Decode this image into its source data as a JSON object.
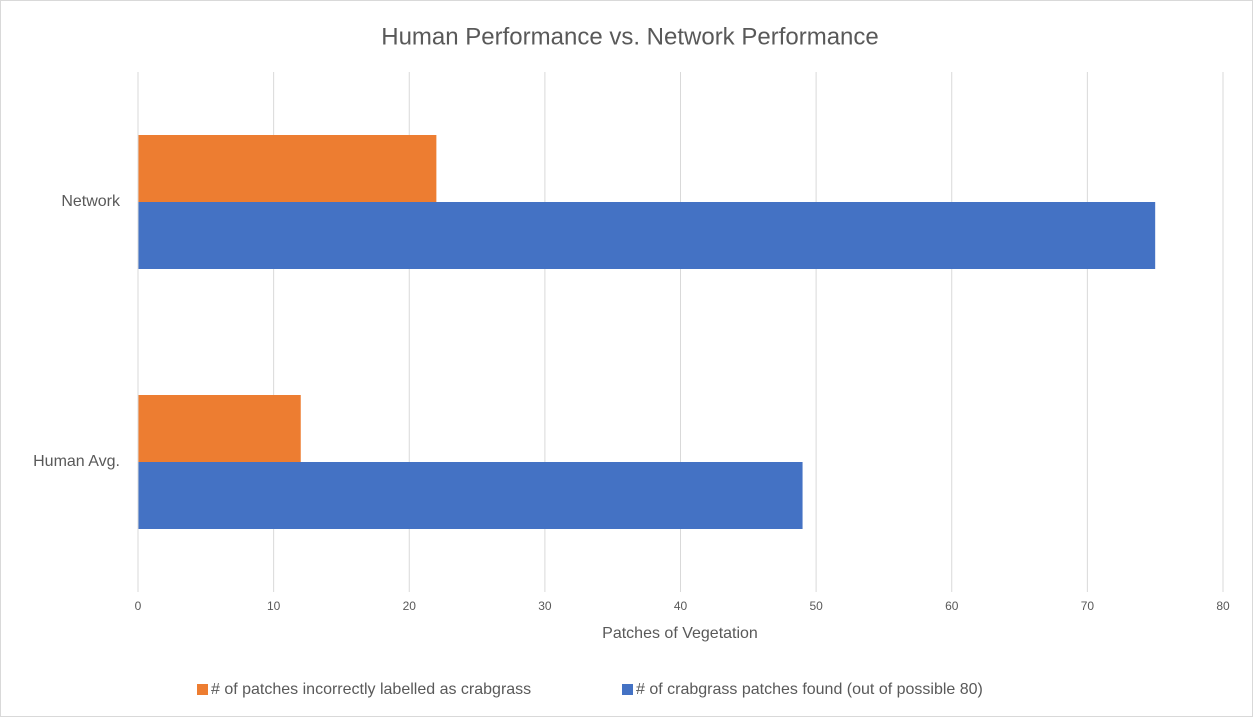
{
  "chart_data": {
    "type": "barh",
    "title": "Human Performance vs. Network Performance",
    "xlabel": "Patches of Vegetation",
    "categories": [
      "Network",
      "Human Avg."
    ],
    "series": [
      {
        "name": "# of patches incorrectly labelled as crabgrass",
        "color": "#ed7d31",
        "values": [
          22,
          12
        ]
      },
      {
        "name": "# of crabgrass patches found (out of possible 80)",
        "color": "#4472c4",
        "values": [
          75,
          49
        ]
      }
    ],
    "xlim": [
      0,
      80
    ],
    "xticks": [
      0,
      10,
      20,
      30,
      40,
      50,
      60,
      70,
      80
    ],
    "grid": true,
    "legend": "bottom"
  }
}
